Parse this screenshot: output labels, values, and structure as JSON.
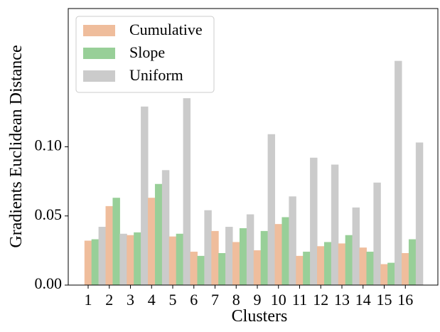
{
  "chart_data": {
    "type": "bar",
    "xlabel": "Clusters",
    "ylabel": "Gradients Euclidean Distance",
    "categories": [
      "1",
      "2",
      "3",
      "4",
      "5",
      "6",
      "7",
      "8",
      "9",
      "10",
      "11",
      "12",
      "13",
      "14",
      "15",
      "16"
    ],
    "series": [
      {
        "name": "Cumulative",
        "color": "#efbd9c",
        "values": [
          0.032,
          0.057,
          0.036,
          0.063,
          0.035,
          0.024,
          0.039,
          0.031,
          0.025,
          0.044,
          0.021,
          0.028,
          0.03,
          0.027,
          0.015,
          0.023
        ]
      },
      {
        "name": "Slope",
        "color": "#98cf98",
        "values": [
          0.033,
          0.063,
          0.038,
          0.073,
          0.037,
          0.021,
          0.023,
          0.041,
          0.039,
          0.049,
          0.024,
          0.031,
          0.036,
          0.024,
          0.016,
          0.033
        ]
      },
      {
        "name": "Uniform",
        "color": "#cbcbcb",
        "values": [
          0.042,
          0.037,
          0.129,
          0.083,
          0.135,
          0.054,
          0.042,
          0.051,
          0.109,
          0.064,
          0.092,
          0.087,
          0.056,
          0.074,
          0.162,
          0.103
        ]
      }
    ],
    "ylim": [
      0,
      0.2
    ],
    "yticks": [
      {
        "value": 0,
        "label": "0.00"
      },
      {
        "value": 0.05,
        "label": "0.05"
      },
      {
        "value": 0.1,
        "label": "0.10"
      }
    ],
    "legend": "upper left"
  }
}
